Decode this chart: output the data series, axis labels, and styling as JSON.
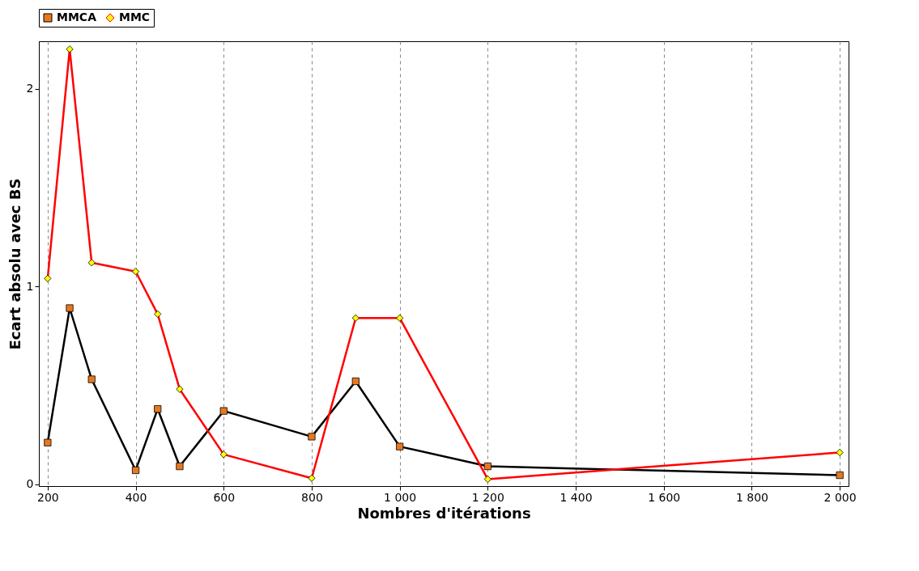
{
  "chart_data": {
    "type": "line",
    "xlabel": "Nombres d'itérations",
    "ylabel": "Ecart absolu avec BS",
    "x": [
      200,
      250,
      300,
      400,
      450,
      500,
      600,
      800,
      900,
      1000,
      1200,
      2000
    ],
    "series": [
      {
        "name": "MMCA",
        "color": "#000000",
        "marker": "square",
        "values": [
          0.21,
          0.89,
          0.53,
          0.07,
          0.38,
          0.09,
          0.37,
          0.24,
          0.52,
          0.19,
          0.09,
          0.045
        ]
      },
      {
        "name": "MMC",
        "color": "#ff0000",
        "marker": "diamond",
        "values": [
          1.04,
          2.2,
          1.12,
          1.075,
          0.86,
          0.48,
          0.15,
          0.03,
          0.84,
          0.84,
          0.025,
          0.16
        ]
      }
    ],
    "xlim": [
      180,
      2020
    ],
    "ylim": [
      -0.01,
      2.24
    ],
    "xticks": [
      200,
      400,
      600,
      800,
      {
        "value": 1000,
        "label": "1 000"
      },
      {
        "value": 1200,
        "label": "1 200"
      },
      {
        "value": 1400,
        "label": "1 400"
      },
      {
        "value": 1600,
        "label": "1 600"
      },
      {
        "value": 1800,
        "label": "1 800"
      },
      {
        "value": 2000,
        "label": "2 000"
      }
    ],
    "yticks": [
      0,
      1,
      2
    ],
    "grid": "x",
    "legend": "top"
  }
}
